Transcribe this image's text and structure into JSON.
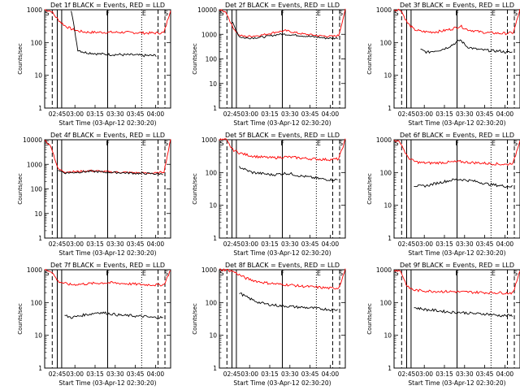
{
  "chart_data": [
    {
      "type": "line",
      "title": "Det 1f BLACK = Events, RED = LLD",
      "xlabel": "Start Time (03-Apr-12 02:30:20)",
      "ylabel": "Counts/sec",
      "y_scale": "log",
      "ylim": [
        1,
        1000
      ],
      "x_ticks": [
        "02:45",
        "03:00",
        "03:15",
        "03:30",
        "03:45",
        "04:00"
      ],
      "y_ticks": [
        "1",
        "10",
        "100",
        "1000"
      ],
      "markers": [
        "S",
        "F",
        "E",
        "S"
      ],
      "series": [
        {
          "color": "#000000",
          "values": [
            null,
            null,
            null,
            null,
            1000,
            60,
            50,
            48,
            45,
            44,
            43,
            43,
            42,
            42,
            41,
            40,
            40,
            null,
            null,
            null
          ]
        },
        {
          "color": "#ff0000",
          "values": [
            1000,
            900,
            500,
            330,
            260,
            225,
            210,
            205,
            205,
            205,
            205,
            205,
            205,
            200,
            200,
            195,
            195,
            195,
            200,
            1000
          ]
        }
      ]
    },
    {
      "type": "line",
      "title": "Det 2f BLACK = Events, RED = LLD",
      "xlabel": "Start Time (03-Apr-12 02:30:20)",
      "ylabel": "Counts/sec",
      "y_scale": "log",
      "ylim": [
        1,
        10000
      ],
      "x_ticks": [
        "02:45",
        "03:00",
        "03:15",
        "03:30",
        "03:45",
        "04:00"
      ],
      "y_ticks": [
        "1",
        "10",
        "100",
        "1000",
        "10000"
      ],
      "markers": [
        "S",
        "F",
        "E",
        "S"
      ],
      "series": [
        {
          "color": "#000000",
          "values": [
            null,
            null,
            3000,
            800,
            700,
            720,
            750,
            800,
            900,
            1000,
            1000,
            950,
            900,
            850,
            800,
            760,
            700,
            700,
            null,
            null
          ]
        },
        {
          "color": "#ff0000",
          "values": [
            10000,
            8000,
            2000,
            900,
            820,
            850,
            900,
            1000,
            1150,
            1300,
            1400,
            1250,
            1100,
            1000,
            950,
            880,
            850,
            820,
            900,
            10000
          ]
        }
      ]
    },
    {
      "type": "line",
      "title": "Det 3f BLACK = Events, RED = LLD",
      "xlabel": "Start Time (03-Apr-12 02:30:20)",
      "ylabel": "Counts/sec",
      "y_scale": "log",
      "ylim": [
        1,
        1000
      ],
      "x_ticks": [
        "02:45",
        "03:00",
        "03:15",
        "03:30",
        "03:45",
        "04:00"
      ],
      "y_ticks": [
        "1",
        "10",
        "100",
        "1000"
      ],
      "markers": [
        "S",
        "F",
        "E",
        "S"
      ],
      "series": [
        {
          "color": "#000000",
          "values": [
            null,
            null,
            null,
            null,
            60,
            50,
            55,
            60,
            70,
            90,
            120,
            75,
            65,
            60,
            58,
            55,
            55,
            50,
            null,
            null
          ]
        },
        {
          "color": "#ff0000",
          "values": [
            1000,
            1000,
            400,
            250,
            220,
            210,
            210,
            220,
            240,
            270,
            320,
            250,
            230,
            210,
            200,
            195,
            190,
            190,
            200,
            1000
          ]
        }
      ]
    },
    {
      "type": "line",
      "title": "Det 4f BLACK = Events, RED = LLD",
      "xlabel": "Start Time (03-Apr-12 02:30:20)",
      "ylabel": "Counts/sec",
      "y_scale": "log",
      "ylim": [
        1,
        10000
      ],
      "x_ticks": [
        "02:45",
        "03:00",
        "03:15",
        "03:30",
        "03:45",
        "04:00"
      ],
      "y_ticks": [
        "1",
        "10",
        "100",
        "1000",
        "10000"
      ],
      "markers": [
        "S",
        "F",
        "E",
        "S"
      ],
      "series": [
        {
          "color": "#000000",
          "values": [
            null,
            null,
            600,
            450,
            460,
            480,
            500,
            520,
            500,
            480,
            470,
            460,
            450,
            440,
            430,
            420,
            420,
            410,
            null,
            null
          ]
        },
        {
          "color": "#ff0000",
          "values": [
            10000,
            5000,
            650,
            500,
            500,
            510,
            530,
            550,
            530,
            500,
            490,
            480,
            470,
            460,
            450,
            440,
            440,
            440,
            500,
            10000
          ]
        }
      ]
    },
    {
      "type": "line",
      "title": "Det 5f BLACK = Events, RED = LLD",
      "xlabel": "Start Time (03-Apr-12 02:30:20)",
      "ylabel": "Counts/sec",
      "y_scale": "log",
      "ylim": [
        1,
        1000
      ],
      "x_ticks": [
        "02:45",
        "03:00",
        "03:15",
        "03:30",
        "03:45",
        "04:00"
      ],
      "y_ticks": [
        "1",
        "10",
        "100",
        "1000"
      ],
      "markers": [
        "S",
        "F",
        "E",
        "S"
      ],
      "series": [
        {
          "color": "#000000",
          "values": [
            null,
            null,
            null,
            150,
            120,
            100,
            95,
            90,
            85,
            90,
            95,
            90,
            80,
            75,
            70,
            65,
            62,
            60,
            null,
            null
          ]
        },
        {
          "color": "#ff0000",
          "values": [
            1000,
            1000,
            500,
            400,
            350,
            320,
            300,
            290,
            280,
            290,
            300,
            290,
            280,
            270,
            260,
            255,
            250,
            250,
            260,
            1000
          ]
        }
      ]
    },
    {
      "type": "line",
      "title": "Det 6f BLACK = Events, RED = LLD",
      "xlabel": "Start Time (03-Apr-12 02:30:20)",
      "ylabel": "Counts/sec",
      "y_scale": "log",
      "ylim": [
        1,
        1000
      ],
      "x_ticks": [
        "02:45",
        "03:00",
        "03:15",
        "03:30",
        "03:45",
        "04:00"
      ],
      "y_ticks": [
        "1",
        "10",
        "100",
        "1000"
      ],
      "markers": [
        "S",
        "F",
        "E",
        "S"
      ],
      "series": [
        {
          "color": "#000000",
          "values": [
            null,
            null,
            null,
            40,
            38,
            40,
            45,
            50,
            55,
            60,
            62,
            58,
            55,
            50,
            45,
            42,
            40,
            38,
            null,
            null
          ]
        },
        {
          "color": "#ff0000",
          "values": [
            1000,
            800,
            300,
            220,
            200,
            195,
            195,
            200,
            205,
            210,
            215,
            205,
            200,
            195,
            190,
            185,
            180,
            175,
            200,
            1000
          ]
        }
      ]
    },
    {
      "type": "line",
      "title": "Det 7f BLACK = Events, RED = LLD",
      "xlabel": "Start Time (03-Apr-12 02:30:20)",
      "ylabel": "Counts/sec",
      "y_scale": "log",
      "ylim": [
        1,
        1000
      ],
      "x_ticks": [
        "02:45",
        "03:00",
        "03:15",
        "03:30",
        "03:45",
        "04:00"
      ],
      "y_ticks": [
        "1",
        "10",
        "100",
        "1000"
      ],
      "markers": [
        "S",
        "F",
        "E",
        "S"
      ],
      "series": [
        {
          "color": "#000000",
          "values": [
            null,
            null,
            null,
            40,
            35,
            38,
            42,
            45,
            50,
            48,
            45,
            42,
            40,
            40,
            38,
            38,
            35,
            35,
            null,
            null
          ]
        },
        {
          "color": "#ff0000",
          "values": [
            1000,
            900,
            450,
            380,
            350,
            360,
            370,
            380,
            390,
            400,
            400,
            390,
            380,
            370,
            360,
            350,
            350,
            345,
            350,
            1000
          ]
        }
      ]
    },
    {
      "type": "line",
      "title": "Det 8f BLACK = Events, RED = LLD",
      "xlabel": "Start Time (03-Apr-12 02:30:20)",
      "ylabel": "Counts/sec",
      "y_scale": "log",
      "ylim": [
        1,
        1000
      ],
      "x_ticks": [
        "02:45",
        "03:00",
        "03:15",
        "03:30",
        "03:45",
        "04:00"
      ],
      "y_ticks": [
        "1",
        "10",
        "100",
        "1000"
      ],
      "markers": [
        "S",
        "F",
        "E",
        "S"
      ],
      "series": [
        {
          "color": "#000000",
          "values": [
            null,
            null,
            null,
            200,
            150,
            120,
            100,
            90,
            85,
            80,
            78,
            75,
            72,
            70,
            68,
            65,
            63,
            60,
            null,
            null
          ]
        },
        {
          "color": "#ff0000",
          "values": [
            1000,
            1000,
            900,
            700,
            550,
            480,
            430,
            400,
            380,
            360,
            350,
            340,
            320,
            310,
            300,
            290,
            280,
            270,
            280,
            1000
          ]
        }
      ]
    },
    {
      "type": "line",
      "title": "Det 9f BLACK = Events, RED = LLD",
      "xlabel": "Start Time (03-Apr-12 02:30:20)",
      "ylabel": "Counts/sec",
      "y_scale": "log",
      "ylim": [
        1,
        1000
      ],
      "x_ticks": [
        "02:45",
        "03:00",
        "03:15",
        "03:30",
        "03:45",
        "04:00"
      ],
      "y_ticks": [
        "1",
        "10",
        "100",
        "1000"
      ],
      "markers": [
        "S",
        "F",
        "E",
        "S"
      ],
      "series": [
        {
          "color": "#000000",
          "values": [
            null,
            null,
            null,
            70,
            65,
            60,
            58,
            55,
            52,
            50,
            50,
            48,
            46,
            45,
            45,
            42,
            40,
            40,
            null,
            null
          ]
        },
        {
          "color": "#ff0000",
          "values": [
            1000,
            900,
            300,
            240,
            230,
            225,
            220,
            220,
            215,
            215,
            210,
            210,
            205,
            205,
            200,
            200,
            200,
            195,
            200,
            1000
          ]
        }
      ]
    }
  ]
}
